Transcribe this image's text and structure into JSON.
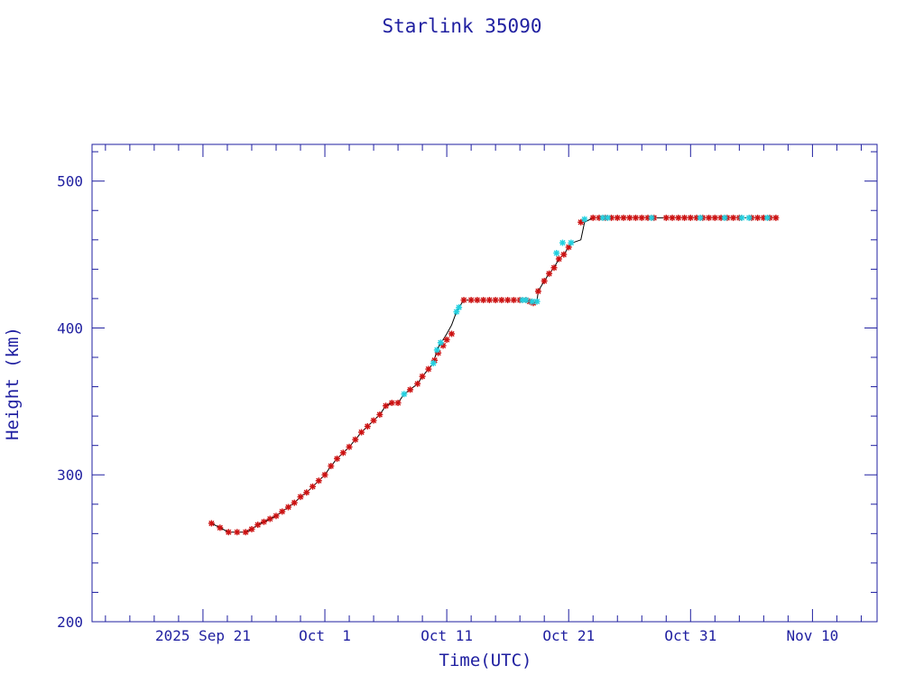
{
  "chart_data": {
    "type": "scatter",
    "title": "Starlink 35090",
    "xlabel": "Time(UTC)",
    "ylabel": "Height (km)",
    "xlim_days": [
      -9.1,
      55.3
    ],
    "ylim": [
      200,
      525
    ],
    "x_ticks": [
      {
        "day": 0,
        "label": "2025 Sep 21"
      },
      {
        "day": 10,
        "label": "Oct  1"
      },
      {
        "day": 20,
        "label": "Oct 11"
      },
      {
        "day": 30,
        "label": "Oct 21"
      },
      {
        "day": 40,
        "label": "Oct 31"
      },
      {
        "day": 50,
        "label": "Nov 10"
      }
    ],
    "y_ticks": [
      200,
      300,
      400,
      500
    ],
    "grid": false,
    "colors": {
      "frame": "#1f1fa0",
      "line": "#000000",
      "red_markers": "#cc1111",
      "cyan_markers": "#22d0e0"
    },
    "series": [
      {
        "marker": "red-star",
        "x": [
          0.7,
          1.4,
          2.1,
          2.8,
          3.5,
          4.0,
          4.5,
          5.0,
          5.5,
          6.0,
          6.5,
          7.0,
          7.5,
          8.0,
          8.5,
          9.0,
          9.5,
          10.0,
          10.5,
          11.0,
          11.5,
          12.0,
          12.5,
          13.0,
          13.5,
          14.0,
          14.5,
          15.0,
          15.5,
          16.0,
          17.0,
          17.6,
          18.0,
          18.5,
          19.0,
          19.3,
          19.7,
          20.0,
          20.4,
          21.4,
          22.0,
          22.5,
          23.0,
          23.5,
          24.0,
          24.5,
          25.0,
          25.5,
          26.0,
          26.5,
          26.8,
          27.1,
          27.5,
          28.0,
          28.4,
          28.8,
          29.2,
          29.6,
          30.0,
          31.0,
          32.0,
          32.5,
          33.0,
          33.5,
          34.0,
          34.5,
          35.0,
          35.5,
          36.0,
          36.5,
          37.0,
          38.0,
          38.5,
          39.0,
          39.5,
          40.0,
          40.5,
          41.0,
          41.5,
          42.0,
          42.5,
          43.0,
          43.5,
          44.0,
          45.0,
          45.5,
          46.0,
          46.5,
          47.0
        ],
        "y": [
          267,
          264,
          261,
          261,
          261,
          263,
          266,
          268,
          270,
          272,
          275,
          278,
          281,
          285,
          288,
          292,
          296,
          300,
          306,
          311,
          315,
          319,
          324,
          329,
          333,
          337,
          341,
          347,
          349,
          349,
          358,
          362,
          367,
          372,
          378,
          383,
          388,
          392,
          396,
          419,
          419,
          419,
          419,
          419,
          419,
          419,
          419,
          419,
          419,
          419,
          418,
          417,
          425,
          432,
          437,
          441,
          447,
          450,
          455,
          472,
          475,
          475,
          475,
          475,
          475,
          475,
          475,
          475,
          475,
          475,
          475,
          475,
          475,
          475,
          475,
          475,
          475,
          475,
          475,
          475,
          475,
          475,
          475,
          475,
          475,
          475,
          475,
          475,
          475
        ]
      },
      {
        "marker": "cyan-star",
        "x": [
          16.5,
          18.9,
          19.2,
          19.5,
          20.8,
          21.0,
          26.2,
          26.5,
          27.0,
          27.4,
          29.0,
          29.5,
          30.2,
          31.3,
          32.8,
          33.2,
          36.8,
          40.8,
          42.8,
          44.2,
          44.8,
          46.3
        ],
        "y": [
          355,
          376,
          385,
          390,
          411,
          414,
          419,
          419,
          418,
          418,
          451,
          458,
          458,
          474,
          475,
          475,
          475,
          475,
          475,
          475,
          475,
          475
        ]
      }
    ],
    "line": {
      "x": [
        0.7,
        1.4,
        2.1,
        2.8,
        3.5,
        4.0,
        4.5,
        5.0,
        5.5,
        6.0,
        6.5,
        7.0,
        7.5,
        8.0,
        8.5,
        9.0,
        9.5,
        10.0,
        10.5,
        11.0,
        11.5,
        12.0,
        12.5,
        13.0,
        13.5,
        14.0,
        14.5,
        15.0,
        15.5,
        16.0,
        16.5,
        17.0,
        17.6,
        18.0,
        18.5,
        18.9,
        19.2,
        19.5,
        19.7,
        20.0,
        20.4,
        20.8,
        21.0,
        21.4,
        22.0,
        23.0,
        24.0,
        25.0,
        26.0,
        26.5,
        26.8,
        27.1,
        27.4,
        27.5,
        28.0,
        28.4,
        28.8,
        29.2,
        29.6,
        30.0,
        30.3,
        31.0,
        31.3,
        32.0,
        33.0,
        35.0,
        40.0,
        45.0,
        47.0
      ],
      "y": [
        267,
        264,
        261,
        261,
        261,
        263,
        266,
        268,
        270,
        272,
        275,
        278,
        281,
        285,
        288,
        292,
        296,
        300,
        306,
        311,
        315,
        319,
        324,
        329,
        333,
        337,
        341,
        347,
        349,
        349,
        355,
        358,
        362,
        367,
        372,
        376,
        385,
        390,
        392,
        396,
        402,
        411,
        414,
        419,
        419,
        419,
        419,
        419,
        419,
        419,
        418,
        417,
        418,
        425,
        432,
        437,
        441,
        447,
        450,
        455,
        458,
        460,
        472,
        475,
        475,
        475,
        475,
        475,
        475
      ]
    }
  }
}
